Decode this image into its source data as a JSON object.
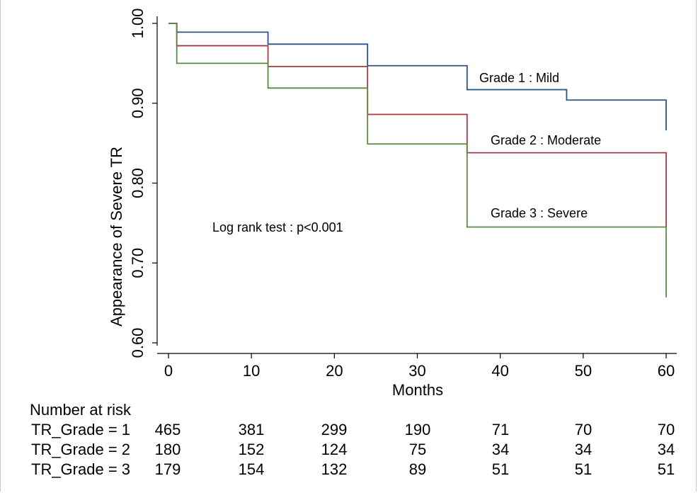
{
  "chart_data": {
    "type": "line",
    "step": true,
    "xlabel": "Months",
    "ylabel": "Appearance of Severe TR",
    "xlim": [
      0,
      60
    ],
    "ylim": [
      0.6,
      1.0
    ],
    "xticks": [
      0,
      10,
      20,
      30,
      40,
      50,
      60
    ],
    "yticks": [
      "0.60",
      "0.70",
      "0.80",
      "0.90",
      "1.00"
    ],
    "grid": false,
    "annotation": "Log rank test : p<0.001",
    "series": [
      {
        "name": "Grade 1 : Mild",
        "color": "#2c5587",
        "x": [
          0,
          1,
          12,
          24,
          36,
          48,
          60
        ],
        "y": [
          1.0,
          0.989,
          0.974,
          0.947,
          0.917,
          0.904,
          0.866
        ]
      },
      {
        "name": "Grade 2 : Moderate",
        "color": "#a53a45",
        "x": [
          0,
          1,
          12,
          24,
          36,
          60
        ],
        "y": [
          1.0,
          0.972,
          0.946,
          0.886,
          0.838,
          0.745
        ]
      },
      {
        "name": "Grade 3 : Severe",
        "color": "#5b8a3c",
        "x": [
          0,
          1,
          12,
          24,
          36,
          60
        ],
        "y": [
          1.0,
          0.95,
          0.919,
          0.849,
          0.745,
          0.657
        ]
      }
    ]
  },
  "risk_table": {
    "title": "Number at risk",
    "times": [
      0,
      10,
      20,
      30,
      40,
      50,
      60
    ],
    "rows": [
      {
        "label": "TR_Grade = 1",
        "values": [
          "465",
          "381",
          "299",
          "190",
          "71",
          "70",
          "70"
        ]
      },
      {
        "label": "TR_Grade = 2",
        "values": [
          "180",
          "152",
          "124",
          "75",
          "34",
          "34",
          "34"
        ]
      },
      {
        "label": "TR_Grade = 3",
        "values": [
          "179",
          "154",
          "132",
          "89",
          "51",
          "51",
          "51"
        ]
      }
    ]
  }
}
